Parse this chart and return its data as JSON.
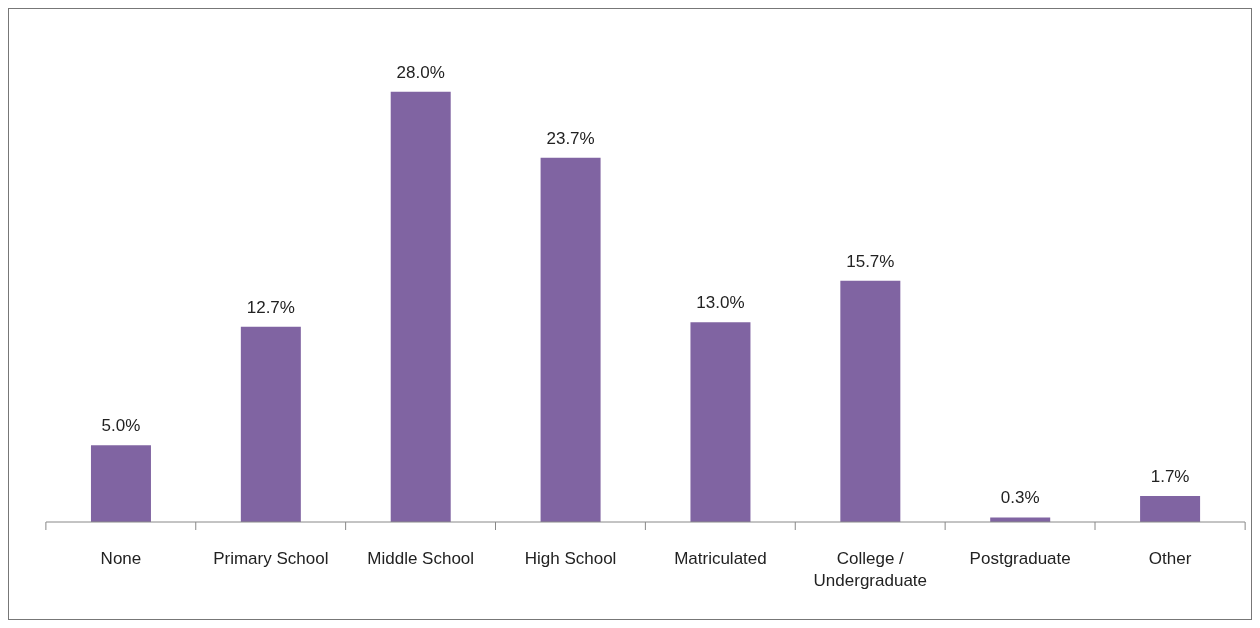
{
  "chart_data": {
    "type": "bar",
    "categories": [
      "None",
      "Primary School",
      "Middle School",
      "High School",
      "Matriculated",
      "College / Undergraduate",
      "Postgraduate",
      "Other"
    ],
    "values": [
      5.0,
      12.7,
      28.0,
      23.7,
      13.0,
      15.7,
      0.3,
      1.7
    ],
    "value_labels": [
      "5.0%",
      "12.7%",
      "28.0%",
      "23.7%",
      "13.0%",
      "15.7%",
      "0.3%",
      "1.7%"
    ],
    "color": "#8064a2",
    "grid": false,
    "legend": false
  }
}
